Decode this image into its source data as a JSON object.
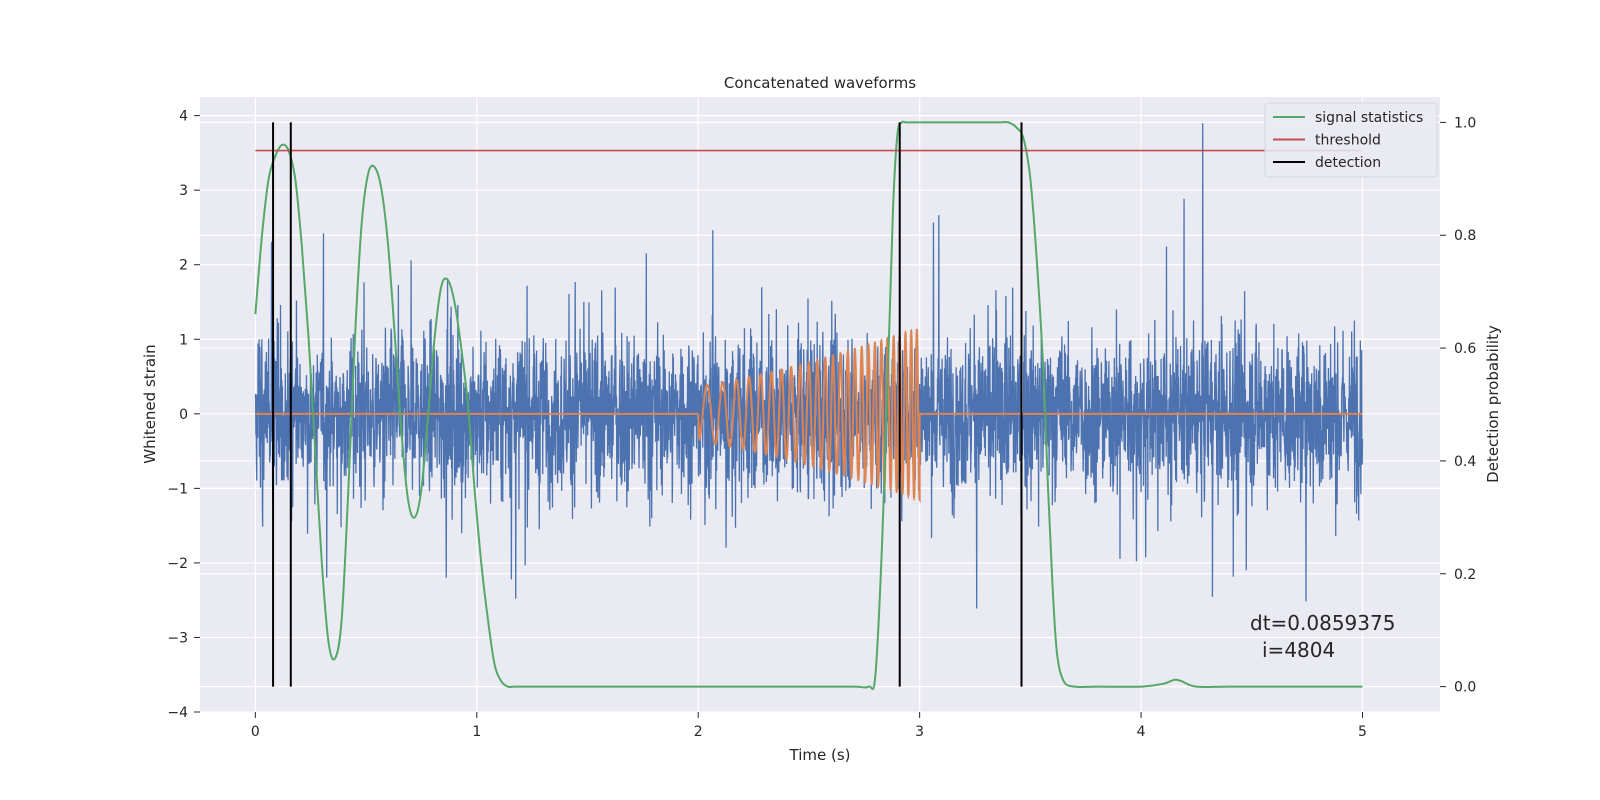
{
  "chart_data": {
    "type": "line",
    "title": "Concatenated waveforms",
    "xlabel": "Time (s)",
    "ylabel": "Whitened strain",
    "y2label": "Detection probability",
    "xlim": [
      -0.25,
      5.35
    ],
    "ylim": [
      -4,
      4.25
    ],
    "y2lim": [
      -0.045,
      1.045
    ],
    "xticks": [
      0,
      1,
      2,
      3,
      4,
      5
    ],
    "yticks": [
      -4,
      -3,
      -2,
      -1,
      0,
      1,
      2,
      3,
      4
    ],
    "y2ticks": [
      0.0,
      0.2,
      0.4,
      0.6,
      0.8,
      1.0
    ],
    "xtick_labels": [
      "0",
      "1",
      "2",
      "3",
      "4",
      "5"
    ],
    "ytick_labels": [
      "−4",
      "−3",
      "−2",
      "−1",
      "0",
      "1",
      "2",
      "3",
      "4"
    ],
    "y2tick_labels": [
      "0.0",
      "0.2",
      "0.4",
      "0.6",
      "0.8",
      "1.0"
    ],
    "grid": true,
    "legend_position": "top-right",
    "colors": {
      "background": "#eaeaf2",
      "grid": "#ffffff",
      "strain": "#4c72b0",
      "injected": "#dd8452",
      "signal_statistics": "#55a868",
      "threshold": "#c44e52",
      "detection": "#000000"
    },
    "series": [
      {
        "name": "",
        "axis": "left",
        "kind": "noise",
        "x_range": [
          0,
          5
        ],
        "samples": 4096,
        "typical_amplitude": 0.55,
        "peak_range": [
          -3.6,
          3.9
        ]
      },
      {
        "name": "",
        "axis": "left",
        "kind": "chirp",
        "x_start": 2.0,
        "x_end": 3.0,
        "amplitude_start": 0.38,
        "amplitude_end": 1.15,
        "freq_start": 12,
        "freq_end": 40,
        "baseline": 0
      },
      {
        "name": "signal statistics",
        "axis": "right",
        "x": [
          0.0,
          0.03,
          0.06,
          0.09,
          0.12,
          0.15,
          0.18,
          0.21,
          0.24,
          0.27,
          0.3,
          0.33,
          0.36,
          0.39,
          0.42,
          0.45,
          0.48,
          0.51,
          0.54,
          0.57,
          0.6,
          0.63,
          0.66,
          0.69,
          0.72,
          0.75,
          0.78,
          0.81,
          0.84,
          0.87,
          0.9,
          0.93,
          0.96,
          0.99,
          1.02,
          1.05,
          1.08,
          1.11,
          1.14,
          1.17,
          1.25,
          1.5,
          2.0,
          2.5,
          2.7,
          2.77,
          2.8,
          2.83,
          2.86,
          2.88,
          2.9,
          2.92,
          2.94,
          3.0,
          3.2,
          3.35,
          3.4,
          3.44,
          3.47,
          3.5,
          3.53,
          3.56,
          3.58,
          3.6,
          3.62,
          3.65,
          3.7,
          3.8,
          4.0,
          4.1,
          4.15,
          4.18,
          4.25,
          4.4,
          4.7,
          5.0
        ],
        "y": [
          0.66,
          0.8,
          0.9,
          0.94,
          0.96,
          0.95,
          0.9,
          0.78,
          0.62,
          0.42,
          0.22,
          0.08,
          0.05,
          0.12,
          0.35,
          0.62,
          0.82,
          0.91,
          0.92,
          0.88,
          0.78,
          0.62,
          0.45,
          0.33,
          0.3,
          0.35,
          0.48,
          0.62,
          0.71,
          0.72,
          0.68,
          0.6,
          0.5,
          0.35,
          0.22,
          0.12,
          0.04,
          0.01,
          0.0,
          0.0,
          0.0,
          0.0,
          0.0,
          0.0,
          0.0,
          0.0,
          0.02,
          0.25,
          0.6,
          0.85,
          0.98,
          1.0,
          1.0,
          1.0,
          1.0,
          1.0,
          1.0,
          0.99,
          0.97,
          0.9,
          0.75,
          0.55,
          0.35,
          0.18,
          0.06,
          0.01,
          0.0,
          0.0,
          0.0,
          0.005,
          0.012,
          0.01,
          0.0,
          0.0,
          0.0,
          0.0
        ]
      },
      {
        "name": "threshold",
        "axis": "right",
        "x": [
          0,
          5
        ],
        "y": [
          0.95,
          0.95
        ]
      },
      {
        "name": "detection",
        "axis": "right",
        "kind": "vlines",
        "x": [
          0.08,
          0.16,
          2.91,
          3.46
        ],
        "y_range": [
          0.0,
          1.0
        ]
      }
    ],
    "legend": [
      "signal statistics",
      "threshold",
      "detection"
    ],
    "annotations": [
      "dt=0.0859375",
      "i=4804"
    ]
  }
}
